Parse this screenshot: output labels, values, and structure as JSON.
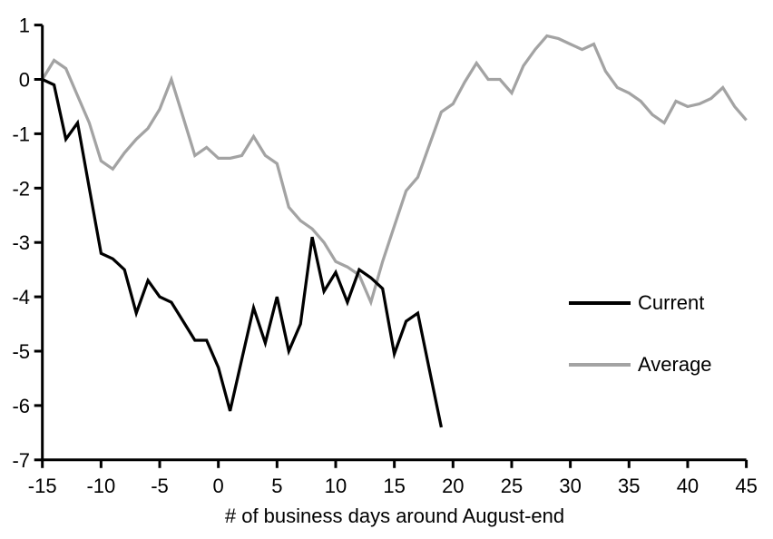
{
  "chart_data": {
    "type": "line",
    "title": "",
    "xlabel": "# of business days around August-end",
    "ylabel": "",
    "xlim": [
      -15,
      45
    ],
    "ylim": [
      -7,
      1
    ],
    "x_ticks": [
      -15,
      -10,
      -5,
      0,
      5,
      10,
      15,
      20,
      25,
      30,
      35,
      40,
      45
    ],
    "y_ticks": [
      1,
      0,
      -1,
      -2,
      -3,
      -4,
      -5,
      -6,
      -7
    ],
    "grid": false,
    "legend_position": "center-right",
    "axis_color": "#000000",
    "series": [
      {
        "name": "Current",
        "color": "#000000",
        "x": [
          -15,
          -14,
          -13,
          -12,
          -11,
          -10,
          -9,
          -8,
          -7,
          -6,
          -5,
          -4,
          -3,
          -2,
          -1,
          0,
          1,
          2,
          3,
          4,
          5,
          6,
          7,
          8,
          9,
          10,
          11,
          12,
          13,
          14,
          15,
          16,
          17,
          18,
          19
        ],
        "values": [
          0,
          -0.1,
          -1.1,
          -0.8,
          -2.0,
          -3.2,
          -3.3,
          -3.5,
          -4.3,
          -3.7,
          -4.0,
          -4.1,
          -4.45,
          -4.8,
          -4.8,
          -5.3,
          -6.1,
          -5.15,
          -4.2,
          -4.85,
          -4.0,
          -5.0,
          -4.5,
          -2.9,
          -3.9,
          -3.55,
          -4.1,
          -3.5,
          -3.65,
          -3.85,
          -5.05,
          -4.45,
          -4.3,
          -5.35,
          -6.4
        ]
      },
      {
        "name": "Average",
        "color": "#a3a3a3",
        "x": [
          -15,
          -14,
          -13,
          -12,
          -11,
          -10,
          -9,
          -8,
          -7,
          -6,
          -5,
          -4,
          -3,
          -2,
          -1,
          0,
          1,
          2,
          3,
          4,
          5,
          6,
          7,
          8,
          9,
          10,
          11,
          12,
          13,
          14,
          15,
          16,
          17,
          18,
          19,
          20,
          21,
          22,
          23,
          24,
          25,
          26,
          27,
          28,
          29,
          30,
          31,
          32,
          33,
          34,
          35,
          36,
          37,
          38,
          39,
          40,
          41,
          42,
          43,
          44,
          45
        ],
        "values": [
          0,
          0.35,
          0.2,
          -0.3,
          -0.8,
          -1.5,
          -1.65,
          -1.35,
          -1.1,
          -0.9,
          -0.55,
          0.0,
          -0.7,
          -1.4,
          -1.25,
          -1.45,
          -1.45,
          -1.4,
          -1.05,
          -1.4,
          -1.55,
          -2.35,
          -2.6,
          -2.75,
          -3.0,
          -3.35,
          -3.45,
          -3.6,
          -4.1,
          -3.35,
          -2.7,
          -2.05,
          -1.8,
          -1.2,
          -0.6,
          -0.45,
          -0.05,
          0.3,
          0.0,
          0.0,
          -0.25,
          0.25,
          0.55,
          0.8,
          0.75,
          0.65,
          0.55,
          0.65,
          0.15,
          -0.15,
          -0.25,
          -0.4,
          -0.65,
          -0.8,
          -0.4,
          -0.5,
          -0.45,
          -0.35,
          -0.15,
          -0.5,
          -0.75
        ]
      }
    ]
  }
}
